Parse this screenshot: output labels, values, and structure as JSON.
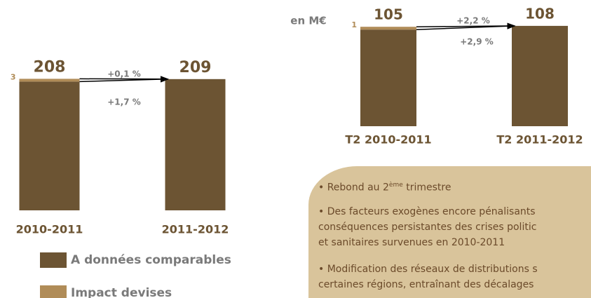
{
  "chart_data": [
    {
      "type": "bar",
      "categories": [
        "2010-2011",
        "2011-2012"
      ],
      "series": [
        {
          "name": "A données comparables",
          "color": "#6c5433",
          "values": [
            205,
            209
          ]
        },
        {
          "name": "Impact devises",
          "color": "#b08c58",
          "values": [
            3,
            null
          ]
        }
      ],
      "totals": [
        208,
        209
      ],
      "annotations": [
        "+0,1 %",
        "+1,7 %"
      ],
      "ylim": [
        0,
        230
      ]
    },
    {
      "type": "bar",
      "unit_label": "en M€",
      "categories": [
        "T2 2010-2011",
        "T2 2011-2012"
      ],
      "series": [
        {
          "color": "#6c5433",
          "values": [
            104,
            108
          ]
        },
        {
          "color": "#b08c58",
          "values": [
            1,
            null
          ]
        }
      ],
      "totals": [
        105,
        108
      ],
      "annotations": [
        "+2,2 %",
        "+2,9 %"
      ],
      "ylim": [
        0,
        120
      ]
    }
  ],
  "text_box": {
    "bullets": [
      {
        "lines": [
          "• Rebond au 2"
        ],
        "sup": "ème",
        "after": " trimestre"
      },
      {
        "lines": [
          "• Des facteurs exogènes encore pénalisants",
          "conséquences persistantes des crises politic",
          "et sanitaires survenues en 2010-2011"
        ]
      },
      {
        "lines": [
          "• Modification des réseaux de distributions s",
          "certaines régions, entraînant des décalages"
        ]
      }
    ]
  }
}
